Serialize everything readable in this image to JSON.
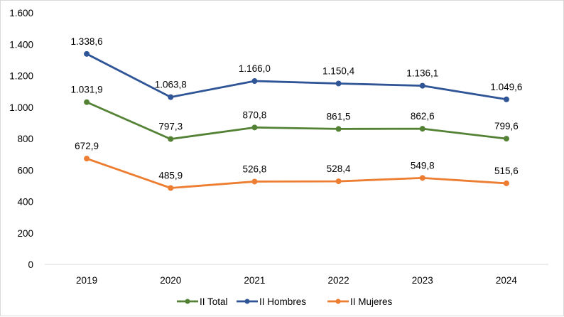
{
  "chart_data": {
    "type": "line",
    "title": "",
    "xlabel": "",
    "ylabel": "",
    "categories": [
      "2019",
      "2020",
      "2021",
      "2022",
      "2023",
      "2024"
    ],
    "ylim": [
      0,
      1600
    ],
    "yticks": [
      0,
      200,
      400,
      600,
      800,
      1000,
      1200,
      1400,
      1600
    ],
    "ytick_labels": [
      "0",
      "200",
      "400",
      "600",
      "800",
      "1.000",
      "1.200",
      "1.400",
      "1.600"
    ],
    "grid": false,
    "legend_position": "bottom",
    "series": [
      {
        "name": "II Total",
        "color": "#548235",
        "values": [
          1031.9,
          797.3,
          870.8,
          861.5,
          862.6,
          799.6
        ],
        "labels": [
          "1.031,9",
          "797,3",
          "870,8",
          "861,5",
          "862,6",
          "799,6"
        ]
      },
      {
        "name": "II Hombres",
        "color": "#2F5597",
        "values": [
          1338.6,
          1063.8,
          1166.0,
          1150.4,
          1136.1,
          1049.6
        ],
        "labels": [
          "1.338,6",
          "1.063,8",
          "1.166,0",
          "1.150,4",
          "1.136,1",
          "1.049,6"
        ]
      },
      {
        "name": "II Mujeres",
        "color": "#ED7D31",
        "values": [
          672.9,
          485.9,
          526.8,
          528.4,
          549.8,
          515.6
        ],
        "labels": [
          "672,9",
          "485,9",
          "526,8",
          "528,4",
          "549,8",
          "515,6"
        ]
      }
    ]
  }
}
